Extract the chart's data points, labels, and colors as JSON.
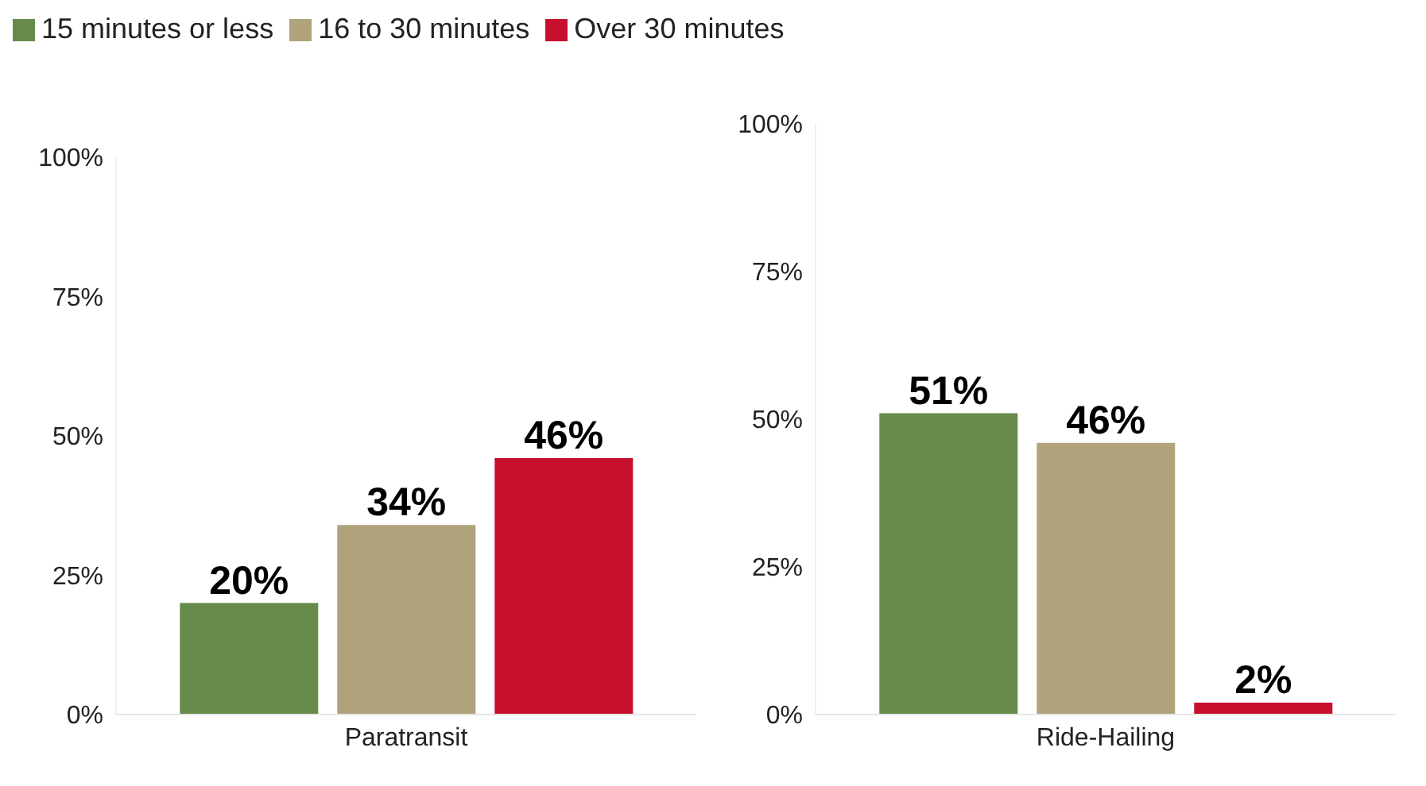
{
  "chart_data": [
    {
      "type": "bar",
      "categories": [
        "Paratransit"
      ],
      "ylim": [
        0,
        100
      ],
      "yticks": [
        {
          "value": 0,
          "label": "0%"
        },
        {
          "value": 25,
          "label": "25%"
        },
        {
          "value": 50,
          "label": "50%"
        },
        {
          "value": 75,
          "label": "75%"
        },
        {
          "value": 100,
          "label": "100%"
        }
      ],
      "legend": "top left",
      "series": [
        {
          "name": "15 minutes or less",
          "color": "#678b4a",
          "values": [
            20
          ],
          "value_labels": [
            "20%"
          ]
        },
        {
          "name": "16 to 30 minutes",
          "color": "#b0a37c",
          "values": [
            34
          ],
          "value_labels": [
            "34%"
          ]
        },
        {
          "name": "Over 30 minutes",
          "color": "#c8102e",
          "values": [
            46
          ],
          "value_labels": [
            "46%"
          ]
        }
      ]
    },
    {
      "type": "bar",
      "categories": [
        "Ride-Hailing"
      ],
      "ylim": [
        0,
        100
      ],
      "yticks": [
        {
          "value": 0,
          "label": "0%"
        },
        {
          "value": 25,
          "label": "25%"
        },
        {
          "value": 50,
          "label": "50%"
        },
        {
          "value": 75,
          "label": "75%"
        },
        {
          "value": 100,
          "label": "100%"
        }
      ],
      "series": [
        {
          "color": "#678b4a",
          "values": [
            51
          ],
          "value_labels": [
            "51%"
          ]
        },
        {
          "color": "#b0a37c",
          "values": [
            46
          ],
          "value_labels": [
            "46%"
          ]
        },
        {
          "color": "#c8102e",
          "values": [
            2
          ],
          "value_labels": [
            "2%"
          ]
        }
      ]
    }
  ]
}
